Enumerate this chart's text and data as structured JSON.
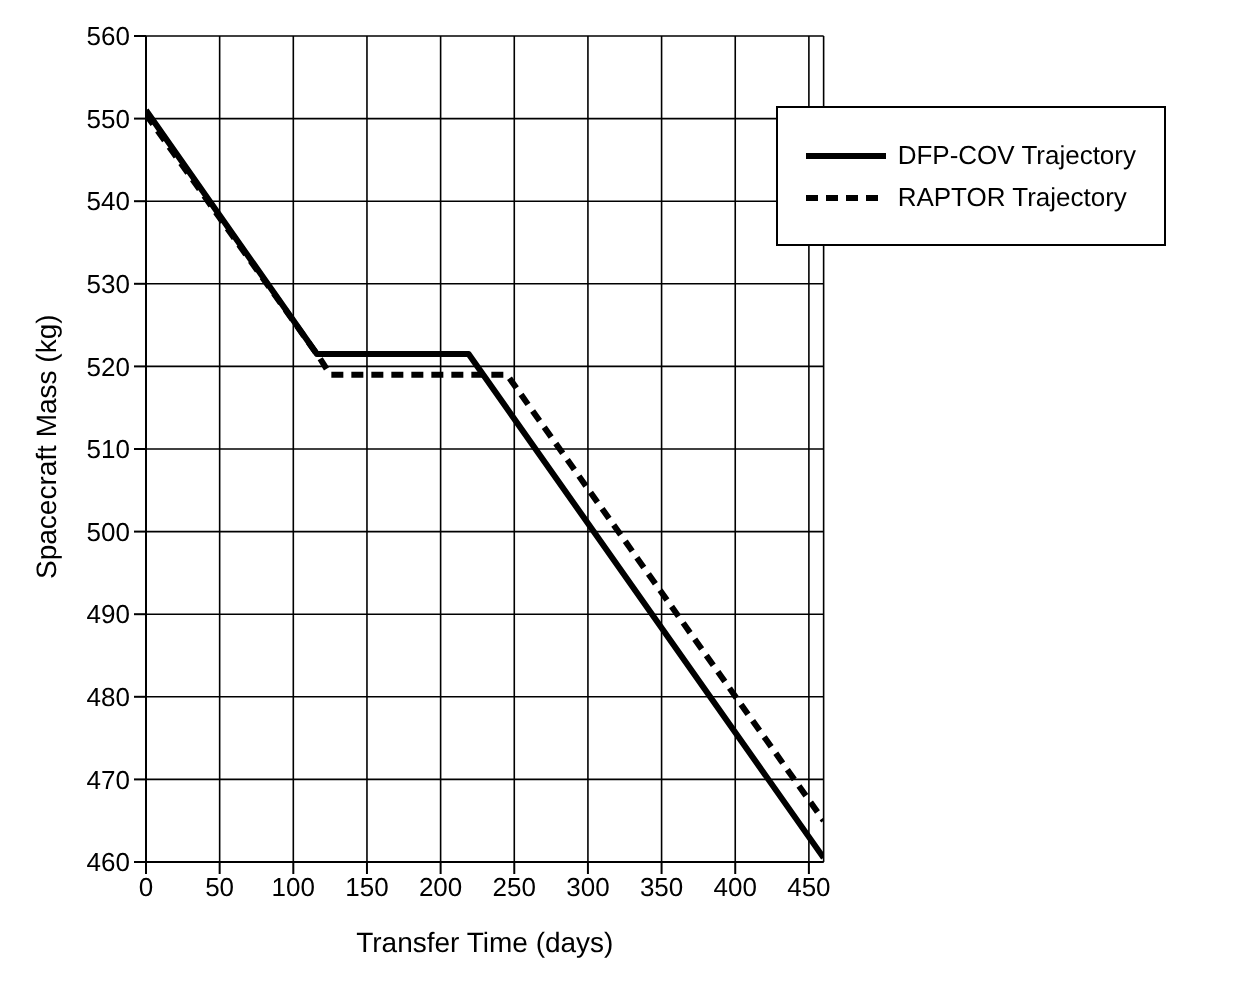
{
  "chart_data": {
    "type": "line",
    "xlabel": "Transfer Time (days)",
    "ylabel": "Spacecraft Mass (kg)",
    "xlim": [
      0,
      460
    ],
    "xticks": [
      0,
      50,
      100,
      150,
      200,
      250,
      300,
      350,
      400,
      450
    ],
    "ylim": [
      460,
      560
    ],
    "yticks": [
      460,
      470,
      480,
      490,
      500,
      510,
      520,
      530,
      540,
      550,
      560
    ],
    "grid": true,
    "legend": "top right",
    "marker": "none",
    "series": [
      {
        "name": "DFP-COV Trajectory",
        "color": "#000000",
        "line_style": "solid",
        "x": [
          0,
          116,
          219,
          460
        ],
        "values": [
          551,
          521.5,
          521.5,
          460.5
        ]
      },
      {
        "name": "RAPTOR Trajectory",
        "color": "#000000",
        "line_style": "dashed",
        "x": [
          0,
          118,
          125,
          245,
          460
        ],
        "values": [
          550.5,
          521,
          519,
          519,
          465
        ]
      }
    ]
  }
}
